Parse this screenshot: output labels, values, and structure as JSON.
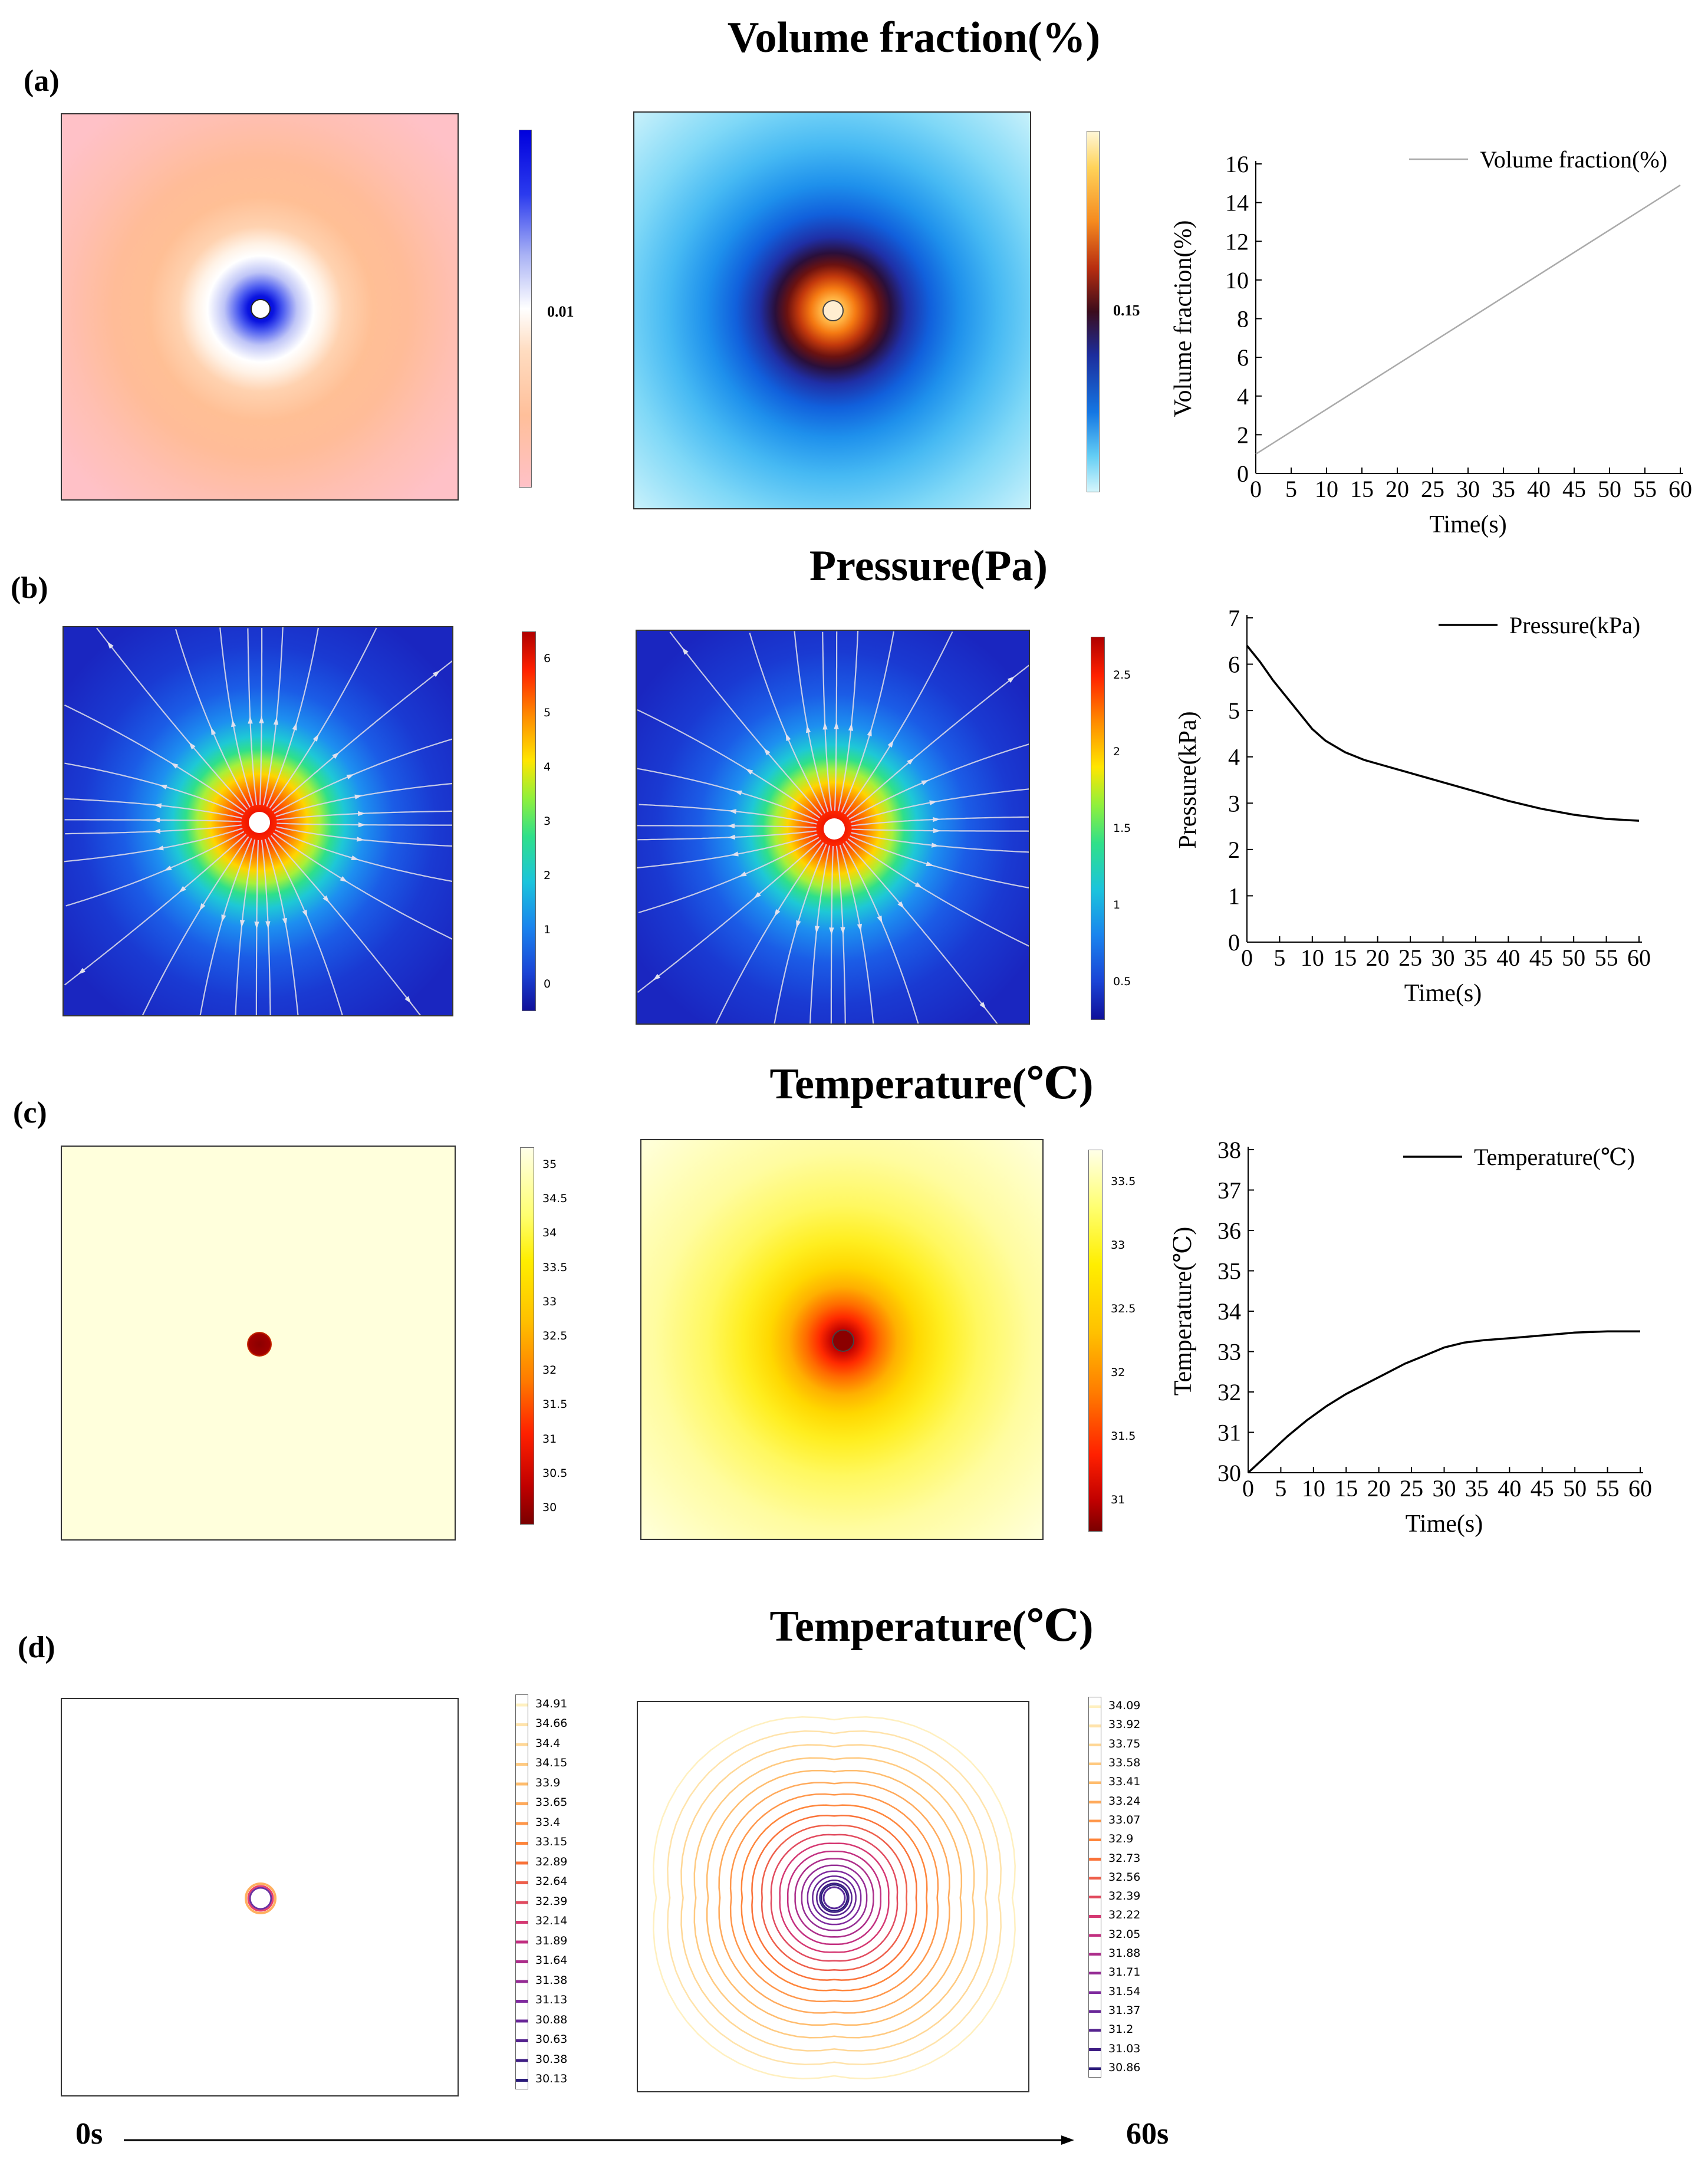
{
  "panels": {
    "a": {
      "label": "(a)",
      "title": "Volume fraction(%)",
      "colorbar1_tick": "0.01",
      "colorbar2_tick": "0.15"
    },
    "b": {
      "label": "(b)",
      "title": "Pressure(Pa)",
      "colorbar1_ticks": [
        "6",
        "5",
        "4",
        "3",
        "2",
        "1",
        "0"
      ],
      "colorbar2_ticks": [
        "2.5",
        "2",
        "1.5",
        "1",
        "0.5"
      ]
    },
    "c": {
      "label": "(c)",
      "title": "Temperature(℃)",
      "colorbar1_ticks": [
        "35",
        "34.5",
        "34",
        "33.5",
        "33",
        "32.5",
        "32",
        "31.5",
        "31",
        "30.5",
        "30"
      ],
      "colorbar2_ticks": [
        "33.5",
        "33",
        "32.5",
        "32",
        "31.5",
        "31"
      ]
    },
    "d": {
      "label": "(d)",
      "title": "Temperature(℃)",
      "legend1": [
        "34.91",
        "34.66",
        "34.4",
        "34.15",
        "33.9",
        "33.65",
        "33.4",
        "33.15",
        "32.89",
        "32.64",
        "32.39",
        "32.14",
        "31.89",
        "31.64",
        "31.38",
        "31.13",
        "30.88",
        "30.63",
        "30.38",
        "30.13"
      ],
      "legend2": [
        "34.09",
        "33.92",
        "33.75",
        "33.58",
        "33.41",
        "33.24",
        "33.07",
        "32.9",
        "32.73",
        "32.56",
        "32.39",
        "32.22",
        "32.05",
        "31.88",
        "31.71",
        "31.54",
        "31.37",
        "31.2",
        "31.03",
        "30.86"
      ]
    }
  },
  "timeline": {
    "start": "0s",
    "end": "60s"
  },
  "colors": {
    "line_light": "#aaaaaa",
    "line_dark": "#000000",
    "field_blue": "#1a2fc0",
    "map_border": "#333333"
  },
  "chart_data": [
    {
      "type": "line",
      "title": "",
      "xlabel": "Time(s)",
      "ylabel": "Volume fraction(%)",
      "xlim": [
        0,
        60
      ],
      "ylim": [
        0,
        16
      ],
      "xticks": [
        "0",
        "5",
        "10",
        "15",
        "20",
        "25",
        "30",
        "35",
        "40",
        "45",
        "50",
        "55",
        "60"
      ],
      "yticks": [
        "0",
        "2",
        "4",
        "6",
        "8",
        "10",
        "12",
        "14",
        "16"
      ],
      "legend": "Volume fraction(%)",
      "series": [
        {
          "name": "Volume fraction(%)",
          "x": [
            0,
            60
          ],
          "y": [
            1.0,
            14.9
          ]
        }
      ]
    },
    {
      "type": "line",
      "title": "",
      "xlabel": "Time(s)",
      "ylabel": "Pressure(kPa)",
      "xlim": [
        0,
        60
      ],
      "ylim": [
        0,
        7
      ],
      "xticks": [
        "0",
        "5",
        "10",
        "15",
        "20",
        "25",
        "30",
        "35",
        "40",
        "45",
        "50",
        "55",
        "60"
      ],
      "yticks": [
        "0",
        "1",
        "2",
        "3",
        "4",
        "5",
        "6",
        "7"
      ],
      "legend": "Pressure(kPa)",
      "series": [
        {
          "name": "Pressure(kPa)",
          "x": [
            0,
            2,
            4,
            6,
            8,
            10,
            12,
            15,
            18,
            20,
            25,
            30,
            35,
            40,
            45,
            50,
            55,
            60
          ],
          "y": [
            6.4,
            6.05,
            5.65,
            5.3,
            4.95,
            4.6,
            4.35,
            4.1,
            3.93,
            3.85,
            3.65,
            3.45,
            3.25,
            3.05,
            2.88,
            2.75,
            2.66,
            2.62
          ]
        }
      ]
    },
    {
      "type": "line",
      "title": "",
      "xlabel": "Time(s)",
      "ylabel": "Temperature(℃)",
      "xlim": [
        0,
        60
      ],
      "ylim": [
        30,
        38
      ],
      "xticks": [
        "0",
        "5",
        "10",
        "15",
        "20",
        "25",
        "30",
        "35",
        "40",
        "45",
        "50",
        "55",
        "60"
      ],
      "yticks": [
        "30",
        "31",
        "32",
        "33",
        "34",
        "35",
        "36",
        "37",
        "38"
      ],
      "legend": "Temperature(℃)",
      "series": [
        {
          "name": "Temperature(℃)",
          "x": [
            0,
            3,
            6,
            9,
            12,
            15,
            18,
            21,
            24,
            27,
            30,
            33,
            36,
            40,
            45,
            50,
            55,
            60
          ],
          "y": [
            30.0,
            30.45,
            30.9,
            31.3,
            31.65,
            31.95,
            32.2,
            32.45,
            32.7,
            32.9,
            33.1,
            33.22,
            33.28,
            33.33,
            33.4,
            33.47,
            33.5,
            33.5
          ]
        }
      ]
    }
  ]
}
